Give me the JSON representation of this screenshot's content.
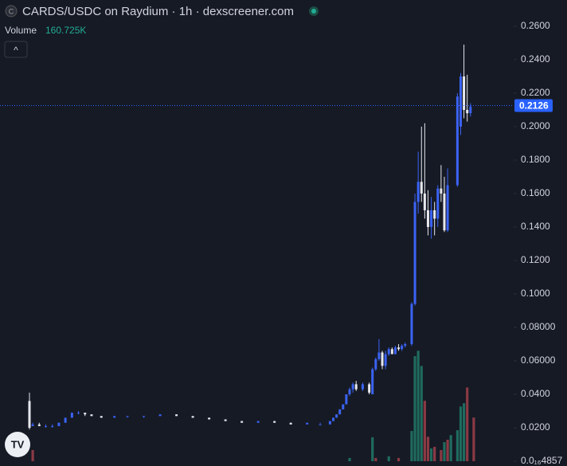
{
  "header": {
    "icon": "C",
    "title": "CARDS/USDC on Raydium · 1h · dexscreener.com",
    "volume_label": "Volume",
    "volume_value": "160.725K",
    "collapse": "^"
  },
  "chart_data": {
    "type": "candlestick",
    "up_color": "#3b63f5",
    "down_color": "#e6e8ee",
    "xlim": [
      0,
      137
    ],
    "ylim": [
      0,
      0.2733
    ],
    "yticks": [
      {
        "value": 4.857e-17,
        "label": "0.0₁₆4857"
      },
      {
        "value": 0.02,
        "label": "0.0200"
      },
      {
        "value": 0.04,
        "label": "0.0400"
      },
      {
        "value": 0.06,
        "label": "0.06000"
      },
      {
        "value": 0.08,
        "label": "0.08000"
      },
      {
        "value": 0.1,
        "label": "0.1000"
      },
      {
        "value": 0.12,
        "label": "0.1200"
      },
      {
        "value": 0.14,
        "label": "0.1400"
      },
      {
        "value": 0.16,
        "label": "0.1600"
      },
      {
        "value": 0.18,
        "label": "0.1800"
      },
      {
        "value": 0.2,
        "label": "0.2000"
      },
      {
        "value": 0.22,
        "label": "0.2200"
      },
      {
        "value": 0.24,
        "label": "0.2400"
      },
      {
        "value": 0.26,
        "label": "0.2600"
      }
    ],
    "current_price": {
      "value": 0.2126,
      "label": "0.2126",
      "color": "#2962ff"
    },
    "x": [
      0,
      1,
      3,
      5,
      7,
      9,
      11,
      13,
      15,
      17,
      19,
      22,
      26,
      30,
      35,
      40,
      45,
      50,
      55,
      60,
      65,
      70,
      75,
      80,
      85,
      89,
      92,
      93,
      94,
      95,
      96,
      97,
      98,
      99,
      100,
      102,
      104,
      105,
      106,
      107,
      108,
      109,
      110,
      111,
      112,
      113,
      114,
      115,
      117,
      118,
      119,
      120,
      121,
      122,
      123,
      124,
      125,
      126,
      127,
      128,
      131,
      132,
      133,
      134,
      135
    ],
    "open": [
      0.036,
      0.021,
      0.022,
      0.021,
      0.021,
      0.021,
      0.023,
      0.026,
      0.029,
      0.029,
      0.028,
      0.027,
      0.026,
      0.027,
      0.027,
      0.027,
      0.028,
      0.027,
      0.026,
      0.025,
      0.024,
      0.023,
      0.024,
      0.023,
      0.022,
      0.022,
      0.022,
      0.024,
      0.026,
      0.028,
      0.031,
      0.034,
      0.04,
      0.043,
      0.046,
      0.043,
      0.046,
      0.04,
      0.055,
      0.061,
      0.065,
      0.057,
      0.064,
      0.067,
      0.064,
      0.068,
      0.067,
      0.069,
      0.07,
      0.094,
      0.155,
      0.167,
      0.16,
      0.15,
      0.14,
      0.15,
      0.145,
      0.163,
      0.16,
      0.138,
      0.165,
      0.2,
      0.23,
      0.21,
      0.208
    ],
    "high": [
      0.041,
      0.023,
      0.023,
      0.022,
      0.022,
      0.023,
      0.026,
      0.029,
      0.03,
      0.029,
      0.028,
      0.027,
      0.027,
      0.027,
      0.027,
      0.028,
      0.028,
      0.027,
      0.026,
      0.025,
      0.024,
      0.024,
      0.024,
      0.023,
      0.023,
      0.023,
      0.024,
      0.026,
      0.028,
      0.031,
      0.034,
      0.04,
      0.044,
      0.047,
      0.048,
      0.047,
      0.047,
      0.056,
      0.062,
      0.073,
      0.066,
      0.066,
      0.068,
      0.068,
      0.069,
      0.07,
      0.07,
      0.071,
      0.095,
      0.16,
      0.185,
      0.2,
      0.202,
      0.162,
      0.158,
      0.155,
      0.165,
      0.177,
      0.17,
      0.175,
      0.22,
      0.232,
      0.249,
      0.231,
      0.214
    ],
    "low": [
      0.019,
      0.021,
      0.021,
      0.02,
      0.02,
      0.021,
      0.023,
      0.026,
      0.028,
      0.027,
      0.027,
      0.026,
      0.026,
      0.026,
      0.026,
      0.027,
      0.027,
      0.026,
      0.025,
      0.024,
      0.023,
      0.023,
      0.023,
      0.022,
      0.022,
      0.022,
      0.022,
      0.024,
      0.026,
      0.028,
      0.031,
      0.034,
      0.039,
      0.041,
      0.042,
      0.042,
      0.04,
      0.04,
      0.054,
      0.06,
      0.055,
      0.055,
      0.063,
      0.064,
      0.064,
      0.066,
      0.066,
      0.068,
      0.069,
      0.093,
      0.148,
      0.155,
      0.145,
      0.135,
      0.133,
      0.135,
      0.14,
      0.155,
      0.137,
      0.137,
      0.164,
      0.195,
      0.205,
      0.203,
      0.206
    ],
    "close": [
      0.02,
      0.022,
      0.021,
      0.021,
      0.021,
      0.023,
      0.026,
      0.029,
      0.029,
      0.028,
      0.027,
      0.026,
      0.027,
      0.027,
      0.027,
      0.028,
      0.027,
      0.026,
      0.025,
      0.024,
      0.023,
      0.024,
      0.023,
      0.022,
      0.023,
      0.022,
      0.024,
      0.026,
      0.028,
      0.031,
      0.034,
      0.04,
      0.043,
      0.046,
      0.043,
      0.046,
      0.041,
      0.055,
      0.061,
      0.065,
      0.057,
      0.064,
      0.067,
      0.064,
      0.068,
      0.067,
      0.069,
      0.07,
      0.094,
      0.155,
      0.167,
      0.16,
      0.15,
      0.14,
      0.15,
      0.145,
      0.163,
      0.16,
      0.138,
      0.165,
      0.218,
      0.23,
      0.21,
      0.208,
      0.212
    ],
    "volume": {
      "up_color": "#1f6b5e",
      "down_color": "#8a3a44",
      "vlim": [
        0,
        600000
      ],
      "x": [
        1,
        98,
        105,
        106,
        110,
        113,
        117,
        118,
        119,
        120,
        121,
        122,
        123,
        124,
        126,
        127,
        128,
        129,
        131,
        132,
        133,
        134,
        136
      ],
      "values": [
        41000,
        12000,
        88000,
        12000,
        18000,
        12000,
        111000,
        386000,
        406000,
        350000,
        222000,
        90000,
        47000,
        53000,
        41000,
        70000,
        79000,
        96000,
        114000,
        201000,
        213000,
        271000,
        160725
      ],
      "up": [
        false,
        true,
        true,
        false,
        true,
        false,
        true,
        true,
        true,
        true,
        false,
        false,
        true,
        false,
        false,
        true,
        false,
        true,
        true,
        true,
        true,
        false,
        false
      ]
    }
  }
}
